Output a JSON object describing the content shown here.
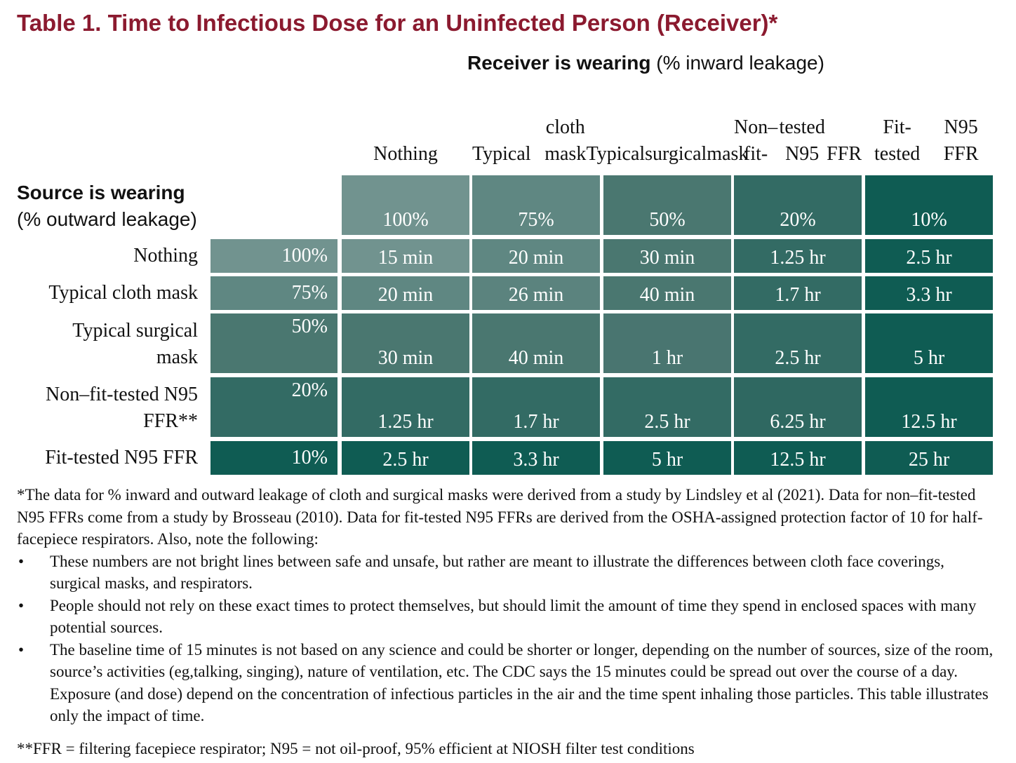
{
  "title": "Table 1. Time to Infectious Dose for an Uninfected Person (Receiver)*",
  "receiver_heading": {
    "bold": "Receiver is wearing",
    "rest": " (% inward leakage)"
  },
  "source_heading": {
    "bold": "Source is wearing",
    "rest": "(% outward leakage)"
  },
  "columns": [
    {
      "label_lines": [
        "Nothing"
      ],
      "leakage": "100%",
      "color": "#71938f"
    },
    {
      "label_lines": [
        "Typical",
        "cloth mask"
      ],
      "leakage": "75%",
      "color": "#5f8782"
    },
    {
      "label_lines": [
        "Typical",
        "surgical",
        "mask"
      ],
      "leakage": "50%",
      "color": "#4a7770"
    },
    {
      "label_lines": [
        "Non–fit-",
        "tested N95",
        "FFR"
      ],
      "leakage": "20%",
      "color": "#336b64"
    },
    {
      "label_lines": [
        "Fit-tested",
        "N95 FFR"
      ],
      "leakage": "10%",
      "color": "#0f5c53"
    }
  ],
  "rows": [
    {
      "label_lines": [
        "Nothing"
      ],
      "leakage": "100%",
      "color": "#71938f",
      "values": [
        "15 min",
        "20 min",
        "30 min",
        "1.25 hr",
        "2.5 hr"
      ]
    },
    {
      "label_lines": [
        "Typical cloth mask"
      ],
      "leakage": "75%",
      "color": "#5f8782",
      "values": [
        "20 min",
        "26 min",
        "40 min",
        "1.7 hr",
        "3.3 hr"
      ]
    },
    {
      "label_lines": [
        "Typical surgical",
        "mask"
      ],
      "leakage": "50%",
      "color": "#4a7770",
      "values": [
        "30 min",
        "40 min",
        "1 hr",
        "2.5 hr",
        "5 hr"
      ]
    },
    {
      "label_lines": [
        "Non–fit-tested N95",
        "FFR**"
      ],
      "leakage": "20%",
      "color": "#336b64",
      "values": [
        "1.25 hr",
        "1.7 hr",
        "2.5 hr",
        "6.25 hr",
        "12.5 hr"
      ]
    },
    {
      "label_lines": [
        "Fit-tested N95 FFR"
      ],
      "leakage": "10%",
      "color": "#0f5c53",
      "values": [
        "2.5 hr",
        "3.3 hr",
        "5 hr",
        "12.5 hr",
        "25 hr"
      ]
    }
  ],
  "cell_colors": [
    [
      "#71938f",
      "#5f8782",
      "#4a7770",
      "#336b64",
      "#0f5c53"
    ],
    [
      "#5f8782",
      "#5b837e",
      "#4a7770",
      "#336b64",
      "#0f5c53"
    ],
    [
      "#4a7770",
      "#4a7770",
      "#497570",
      "#336b64",
      "#0f5c53"
    ],
    [
      "#336b64",
      "#336b64",
      "#336b64",
      "#2f6861",
      "#0f5c53"
    ],
    [
      "#0f5c53",
      "#0f5c53",
      "#0f5c53",
      "#0f5c53",
      "#0f5c53"
    ]
  ],
  "notes": {
    "intro": "*The data for % inward and outward leakage of cloth and surgical masks were derived from a study by Lindsley et al (2021). Data for non–fit-tested N95 FFRs come from a study by Brosseau (2010). Data for fit-tested N95 FFRs are derived from the OSHA-assigned protection factor of 10 for half-facepiece respirators. Also, note the following:",
    "bullet_char": "•",
    "bullets": [
      "These numbers are not bright lines between safe and unsafe, but rather are meant to illustrate the differences between cloth face coverings, surgical masks, and respirators.",
      "People should not rely on these exact times to protect themselves, but should limit the amount of time they spend in enclosed spaces with many potential sources.",
      "The baseline time of 15 minutes is not based on any science and could be shorter or longer, depending on the number of sources, size of the room, source’s activities (eg,talking, singing), nature of ventilation, etc. The CDC says the 15 minutes could be spread out over the course of a day. Exposure (and dose) depend on the concentration of infectious particles in the air and the time spent inhaling those particles. This table illustrates only the impact of time."
    ],
    "footnote": "**FFR = filtering facepiece respirator; N95 = not oil-proof, 95% efficient at NIOSH filter test conditions"
  }
}
